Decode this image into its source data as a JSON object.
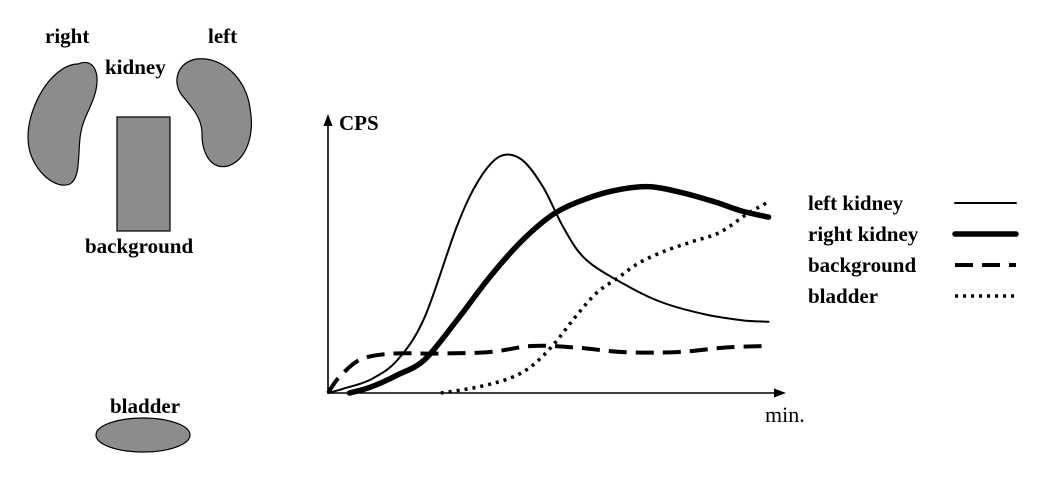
{
  "anatomy": {
    "right_label": "right",
    "left_label": "left",
    "kidney_label": "kidney",
    "background_label": "background",
    "bladder_label": "bladder",
    "organ_color": "#8c8c8c"
  },
  "chart_data": {
    "type": "line",
    "ylabel": "CPS",
    "xlabel": "min.",
    "grid": false,
    "legend_placement": "right",
    "series": [
      {
        "name": "left kidney",
        "style": "thin-solid",
        "points": [
          [
            0,
            0
          ],
          [
            0.3,
            1.5
          ],
          [
            0.8,
            4.5
          ],
          [
            1.3,
            11
          ],
          [
            1.8,
            25
          ],
          [
            2.4,
            55
          ],
          [
            2.8,
            70
          ],
          [
            3.2,
            78
          ],
          [
            3.6,
            77
          ],
          [
            4.0,
            68
          ],
          [
            4.4,
            54
          ],
          [
            4.8,
            44
          ],
          [
            5.5,
            36
          ],
          [
            6.2,
            30
          ],
          [
            7.0,
            26
          ],
          [
            7.7,
            24
          ],
          [
            8.2,
            23.5
          ]
        ]
      },
      {
        "name": "right kidney",
        "style": "thick-solid",
        "points": [
          [
            0.4,
            0
          ],
          [
            0.8,
            2
          ],
          [
            1.3,
            6
          ],
          [
            1.8,
            11
          ],
          [
            2.4,
            24
          ],
          [
            3.0,
            38
          ],
          [
            3.6,
            50
          ],
          [
            4.2,
            59
          ],
          [
            4.8,
            64
          ],
          [
            5.4,
            67
          ],
          [
            6.0,
            68
          ],
          [
            6.6,
            66
          ],
          [
            7.2,
            63
          ],
          [
            7.7,
            60
          ],
          [
            8.2,
            58
          ]
        ]
      },
      {
        "name": "background",
        "style": "dashed",
        "points": [
          [
            0,
            0
          ],
          [
            0.2,
            5
          ],
          [
            0.6,
            11
          ],
          [
            1.2,
            13
          ],
          [
            2.0,
            13
          ],
          [
            3.0,
            13.5
          ],
          [
            3.8,
            15.5
          ],
          [
            4.6,
            15
          ],
          [
            5.5,
            13.5
          ],
          [
            6.5,
            13.5
          ],
          [
            7.4,
            15
          ],
          [
            8.2,
            15.5
          ]
        ]
      },
      {
        "name": "bladder",
        "style": "dotted",
        "points": [
          [
            2.1,
            0
          ],
          [
            2.8,
            2
          ],
          [
            3.4,
            5
          ],
          [
            3.8,
            9
          ],
          [
            4.2,
            16
          ],
          [
            4.6,
            25
          ],
          [
            5.0,
            33
          ],
          [
            5.4,
            38
          ],
          [
            5.8,
            43
          ],
          [
            6.3,
            47
          ],
          [
            6.8,
            50
          ],
          [
            7.3,
            53
          ],
          [
            7.8,
            59
          ],
          [
            8.2,
            63
          ]
        ]
      }
    ],
    "xlim": [
      0,
      8.6
    ],
    "ylim": [
      0,
      90
    ]
  }
}
